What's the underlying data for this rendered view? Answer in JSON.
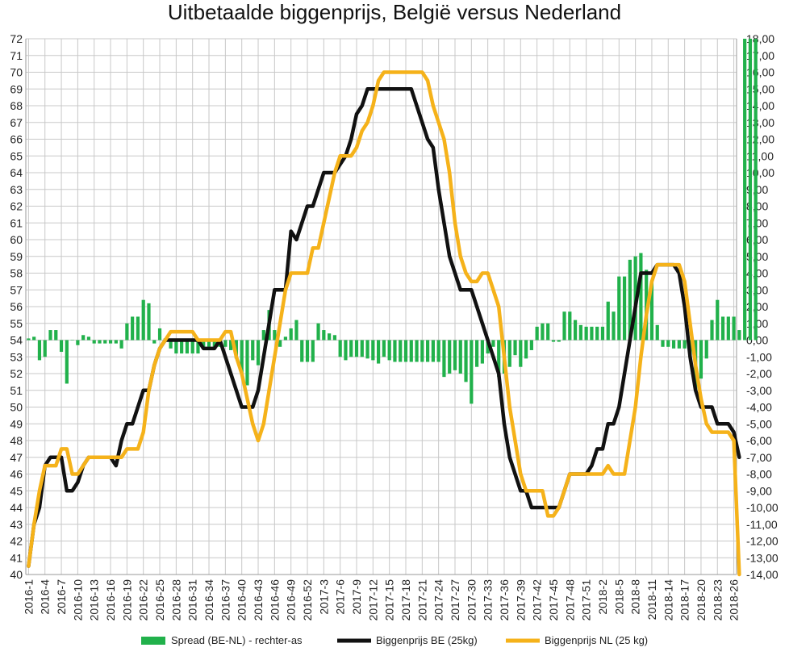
{
  "chart_data": {
    "type": "bar+line",
    "title": "Uitbetaalde biggenprijs, België versus Nederland",
    "xlabel": "",
    "ylabel_left": "",
    "ylabel_right": "",
    "ylim_left": [
      40,
      72
    ],
    "ylim_right": [
      -14,
      18
    ],
    "yticks_left": [
      "40",
      "41",
      "42",
      "43",
      "44",
      "45",
      "46",
      "47",
      "48",
      "49",
      "50",
      "51",
      "52",
      "53",
      "54",
      "55",
      "56",
      "57",
      "58",
      "59",
      "60",
      "61",
      "62",
      "63",
      "64",
      "65",
      "66",
      "67",
      "68",
      "69",
      "70",
      "71",
      "72"
    ],
    "yticks_right": [
      "-14,00",
      "-13,00",
      "-12,00",
      "-11,00",
      "-10,00",
      "-9,00",
      "-8,00",
      "-7,00",
      "-6,00",
      "-5,00",
      "-4,00",
      "-3,00",
      "-2,00",
      "-1,00",
      "0,00",
      "1,00",
      "2,00",
      "3,00",
      "4,00",
      "5,00",
      "6,00",
      "7,00",
      "8,00",
      "9,00",
      "10,00",
      "11,00",
      "12,00",
      "13,00",
      "14,00",
      "15,00",
      "16,00",
      "17,00",
      "18,00"
    ],
    "weeks": 130,
    "xtick_labels": [
      {
        "i": 0,
        "label": "2016-1"
      },
      {
        "i": 3,
        "label": "2016-4"
      },
      {
        "i": 6,
        "label": "2016-7"
      },
      {
        "i": 9,
        "label": "2016-10"
      },
      {
        "i": 12,
        "label": "2016-13"
      },
      {
        "i": 15,
        "label": "2016-16"
      },
      {
        "i": 18,
        "label": "2016-19"
      },
      {
        "i": 21,
        "label": "2016-22"
      },
      {
        "i": 24,
        "label": "2016-25"
      },
      {
        "i": 27,
        "label": "2016-28"
      },
      {
        "i": 30,
        "label": "2016-31"
      },
      {
        "i": 33,
        "label": "2016-34"
      },
      {
        "i": 36,
        "label": "2016-37"
      },
      {
        "i": 39,
        "label": "2016-40"
      },
      {
        "i": 42,
        "label": "2016-43"
      },
      {
        "i": 45,
        "label": "2016-46"
      },
      {
        "i": 48,
        "label": "2016-49"
      },
      {
        "i": 51,
        "label": "2016-52"
      },
      {
        "i": 54,
        "label": "2017-3"
      },
      {
        "i": 57,
        "label": "2017-6"
      },
      {
        "i": 60,
        "label": "2017-9"
      },
      {
        "i": 63,
        "label": "2017-12"
      },
      {
        "i": 66,
        "label": "2017-15"
      },
      {
        "i": 69,
        "label": "2017-18"
      },
      {
        "i": 72,
        "label": "2017-21"
      },
      {
        "i": 75,
        "label": "2017-24"
      },
      {
        "i": 78,
        "label": "2017-27"
      },
      {
        "i": 81,
        "label": "2017-30"
      },
      {
        "i": 84,
        "label": "2017-33"
      },
      {
        "i": 87,
        "label": "2017-36"
      },
      {
        "i": 90,
        "label": "2017-39"
      },
      {
        "i": 93,
        "label": "2017-42"
      },
      {
        "i": 96,
        "label": "2017-45"
      },
      {
        "i": 99,
        "label": "2017-48"
      },
      {
        "i": 102,
        "label": "2017-51"
      },
      {
        "i": 105,
        "label": "2018-2"
      },
      {
        "i": 108,
        "label": "2018-5"
      },
      {
        "i": 111,
        "label": "2018-8"
      },
      {
        "i": 114,
        "label": "2018-11"
      },
      {
        "i": 117,
        "label": "2018-14"
      },
      {
        "i": 120,
        "label": "2018-17"
      },
      {
        "i": 123,
        "label": "2018-20"
      },
      {
        "i": 126,
        "label": "2018-23"
      },
      {
        "i": 129,
        "label": "2018-26"
      }
    ],
    "series": [
      {
        "name": "Spread (BE-NL) - rechter-as",
        "type": "bar",
        "axis": "right",
        "color": "#21b14b",
        "values": [
          0.1,
          0.2,
          -1.2,
          -1.0,
          0.6,
          0.6,
          -0.7,
          -2.6,
          0,
          -0.3,
          0.3,
          0.2,
          -0.2,
          -0.2,
          -0.2,
          -0.2,
          -0.2,
          -0.5,
          1.0,
          1.4,
          1.4,
          2.4,
          2.2,
          -0.2,
          0.7,
          0.1,
          -0.5,
          -0.8,
          -0.8,
          -0.8,
          -0.8,
          -0.8,
          -0.4,
          -0.4,
          -0.4,
          -0.4,
          -0.4,
          -0.6,
          -1.1,
          -2.0,
          -2.7,
          -1.2,
          -1.5,
          0.6,
          1.8,
          0.6,
          -0.4,
          0.2,
          0.7,
          1.2,
          -1.3,
          -1.3,
          -1.3,
          1.0,
          0.6,
          0.4,
          0.3,
          -1.0,
          -1.2,
          -1.0,
          -1.0,
          -1.0,
          -1.1,
          -1.2,
          -1.4,
          -1.0,
          -1.2,
          -1.3,
          -1.3,
          -1.3,
          -1.3,
          -1.3,
          -1.3,
          -1.3,
          -1.3,
          -1.3,
          -2.2,
          -2.0,
          -1.8,
          -2.0,
          -2.5,
          -3.8,
          -1.6,
          -1.4,
          -0.8,
          -0.4,
          -2.2,
          -2.0,
          -1.6,
          -0.9,
          -1.6,
          -1.1,
          -0.6,
          0.8,
          1.0,
          1.0,
          -0.1,
          -0.1,
          1.7,
          1.7,
          1.2,
          0.9,
          0.8,
          0.8,
          0.8,
          0.8,
          2.3,
          1.7,
          3.8,
          3.8,
          4.8,
          5.0,
          5.2,
          4.2,
          3.5,
          0.9,
          -0.4,
          -0.4,
          -0.5,
          -0.5,
          -0.5,
          -1.0,
          -3.0,
          -2.3,
          -1.1,
          1.2,
          2.4,
          1.4,
          1.4,
          1.4,
          0.6,
          18.0,
          18.0,
          18.0
        ]
      },
      {
        "name": "Biggenprijs BE (25kg)",
        "type": "line",
        "axis": "left",
        "color": "#111111",
        "values": [
          40.5,
          43,
          44,
          46.5,
          47,
          47,
          47,
          45,
          45,
          45.5,
          46.5,
          47,
          47,
          47,
          47,
          47,
          46.5,
          48,
          49,
          49,
          50,
          51,
          51,
          52.5,
          53.5,
          54,
          54,
          54,
          54,
          54,
          54,
          54,
          53.5,
          53.5,
          53.5,
          54,
          53,
          52,
          51,
          50,
          50,
          50,
          51,
          53,
          55,
          57,
          57,
          57,
          60.5,
          60,
          61,
          62,
          62,
          63,
          64,
          64,
          64,
          64.5,
          65,
          66,
          67.5,
          68,
          69,
          69,
          69,
          69,
          69,
          69,
          69,
          69,
          69,
          68,
          67,
          66,
          65.5,
          63,
          61,
          59,
          58,
          57,
          57,
          57,
          56,
          55,
          54,
          53,
          52,
          49,
          47,
          46,
          45,
          45,
          44,
          44,
          44,
          44,
          44,
          44,
          45,
          46,
          46,
          46,
          46,
          46.5,
          47.5,
          47.5,
          49,
          49,
          50,
          52,
          54,
          56,
          58,
          58,
          58,
          58.5,
          58.5,
          58.5,
          58.5,
          58,
          56,
          53,
          51,
          50,
          50,
          50,
          49,
          49,
          49,
          48.5,
          47
        ]
      },
      {
        "name": "Biggenprijs NL (25 kg)",
        "type": "line",
        "axis": "left",
        "color": "#f5b21a",
        "values": [
          40.5,
          43,
          45,
          46.5,
          46.5,
          46.5,
          47.5,
          47.5,
          46,
          46,
          46.5,
          47,
          47,
          47,
          47,
          47,
          47,
          47,
          47.5,
          47.5,
          47.5,
          48.5,
          51,
          52.5,
          53.5,
          54,
          54.5,
          54.5,
          54.5,
          54.5,
          54.5,
          54,
          54,
          54,
          54,
          54,
          54.5,
          54.5,
          53,
          52,
          50.5,
          49,
          48,
          49,
          51,
          53,
          55,
          57,
          58,
          58,
          58,
          58,
          59.5,
          59.5,
          61,
          62.5,
          64,
          65,
          65,
          65,
          65.5,
          66.5,
          67,
          68,
          69.5,
          70,
          70,
          70,
          70,
          70,
          70,
          70,
          70,
          69.5,
          68,
          67,
          66,
          64,
          61,
          59,
          58,
          57.5,
          57.5,
          58,
          58,
          57,
          56,
          53,
          50,
          48,
          46,
          45,
          45,
          45,
          45,
          43.5,
          43.5,
          44,
          45,
          46,
          46,
          46,
          46,
          46,
          46,
          46,
          46.5,
          46,
          46,
          46,
          48,
          50,
          53,
          55.5,
          57.5,
          58.5,
          58.5,
          58.5,
          58.5,
          58.5,
          57.5,
          55,
          52.5,
          50.5,
          49,
          48.5,
          48.5,
          48.5,
          48.5,
          48,
          40
        ]
      }
    ],
    "legend_position": "bottom",
    "grid": true
  }
}
